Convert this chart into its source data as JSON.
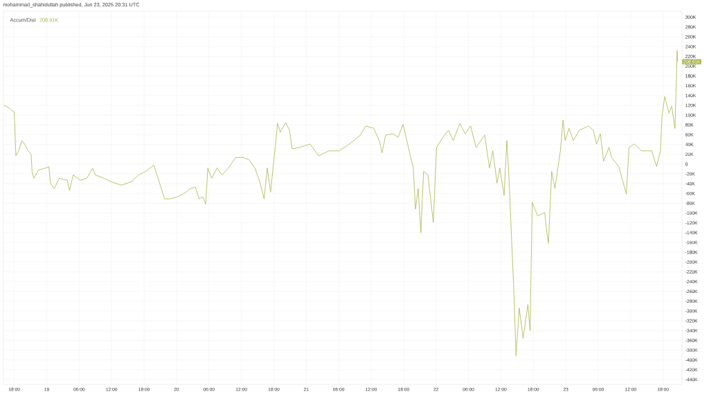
{
  "chart_data": {
    "type": "line",
    "annotations": [
      "mohammad_shahidullah published, Jun 23, 2025 20:31 UTC",
      "208.91K"
    ],
    "x": [
      "2025-06-18T16:06",
      "2025-06-18T17:00",
      "2025-06-18T17:30",
      "2025-06-18T18:00",
      "2025-06-18T18:18",
      "2025-06-18T18:48",
      "2025-06-18T19:24",
      "2025-06-18T19:54",
      "2025-06-18T20:36",
      "2025-06-18T21:06",
      "2025-06-18T21:18",
      "2025-06-18T21:36",
      "2025-06-18T22:30",
      "2025-06-18T23:48",
      "2025-06-19T00:24",
      "2025-06-19T00:42",
      "2025-06-19T01:24",
      "2025-06-19T02:18",
      "2025-06-19T03:48",
      "2025-06-19T04:12",
      "2025-06-19T04:54",
      "2025-06-19T06:12",
      "2025-06-19T07:24",
      "2025-06-19T08:30",
      "2025-06-19T09:00",
      "2025-06-19T10:36",
      "2025-06-19T11:54",
      "2025-06-19T13:48",
      "2025-06-19T15:42",
      "2025-06-19T17:00",
      "2025-06-19T18:18",
      "2025-06-19T19:48",
      "2025-06-19T20:36",
      "2025-06-19T21:48",
      "2025-06-19T22:48",
      "2025-06-20T00:06",
      "2025-06-20T01:18",
      "2025-06-20T02:36",
      "2025-06-20T03:30",
      "2025-06-20T04:12",
      "2025-06-20T04:54",
      "2025-06-20T05:24",
      "2025-06-20T05:48",
      "2025-06-20T06:30",
      "2025-06-20T07:30",
      "2025-06-20T08:24",
      "2025-06-20T09:36",
      "2025-06-20T10:54",
      "2025-06-20T12:12",
      "2025-06-20T13:24",
      "2025-06-20T14:30",
      "2025-06-20T15:24",
      "2025-06-20T16:12",
      "2025-06-20T16:48",
      "2025-06-20T17:24",
      "2025-06-20T18:06",
      "2025-06-20T18:42",
      "2025-06-20T19:12",
      "2025-06-20T20:12",
      "2025-06-20T20:54",
      "2025-06-20T21:24",
      "2025-06-20T22:42",
      "2025-06-21T00:42",
      "2025-06-21T02:18",
      "2025-06-21T04:12",
      "2025-06-21T06:06",
      "2025-06-21T08:00",
      "2025-06-21T10:00",
      "2025-06-21T11:00",
      "2025-06-21T12:30",
      "2025-06-21T13:36",
      "2025-06-21T14:00",
      "2025-06-21T14:42",
      "2025-06-21T16:00",
      "2025-06-21T17:00",
      "2025-06-21T17:54",
      "2025-06-21T18:54",
      "2025-06-21T19:48",
      "2025-06-21T20:12",
      "2025-06-21T20:42",
      "2025-06-21T21:12",
      "2025-06-21T21:42",
      "2025-06-21T22:30",
      "2025-06-21T23:30",
      "2025-06-22T00:06",
      "2025-06-22T01:18",
      "2025-06-22T02:18",
      "2025-06-22T03:12",
      "2025-06-22T04:24",
      "2025-06-22T05:24",
      "2025-06-22T06:24",
      "2025-06-22T07:24",
      "2025-06-22T09:00",
      "2025-06-22T09:54",
      "2025-06-22T10:30",
      "2025-06-22T11:18",
      "2025-06-22T11:48",
      "2025-06-22T12:36",
      "2025-06-22T13:06",
      "2025-06-22T13:30",
      "2025-06-22T13:54",
      "2025-06-22T14:24",
      "2025-06-22T14:48",
      "2025-06-22T15:24",
      "2025-06-22T16:06",
      "2025-06-22T17:00",
      "2025-06-22T17:24",
      "2025-06-22T17:48",
      "2025-06-22T18:48",
      "2025-06-22T20:06",
      "2025-06-22T20:30",
      "2025-06-22T20:48",
      "2025-06-22T21:24",
      "2025-06-22T22:00",
      "2025-06-22T23:00",
      "2025-06-22T23:30",
      "2025-06-22T23:54",
      "2025-06-23T00:36",
      "2025-06-23T01:24",
      "2025-06-23T02:30",
      "2025-06-23T04:12",
      "2025-06-23T05:06",
      "2025-06-23T05:42",
      "2025-06-23T06:24",
      "2025-06-23T07:00",
      "2025-06-23T08:00",
      "2025-06-23T08:30",
      "2025-06-23T09:48",
      "2025-06-23T11:12",
      "2025-06-23T11:42",
      "2025-06-23T12:42",
      "2025-06-23T14:00",
      "2025-06-23T15:54",
      "2025-06-23T16:48",
      "2025-06-23T17:30",
      "2025-06-23T17:48",
      "2025-06-23T18:18",
      "2025-06-23T19:06",
      "2025-06-23T19:36",
      "2025-06-23T20:12",
      "2025-06-23T20:36",
      "2025-06-23T20:42"
    ],
    "series": [
      {
        "name": "Accum/Dist",
        "color": "#a9b449",
        "values": [
          120,
          115,
          110,
          106,
          17,
          27,
          48,
          41,
          27,
          20,
          -15,
          -29,
          -12,
          -8,
          -5,
          -39,
          -50,
          -29,
          -33,
          -54,
          -22,
          -33,
          -29,
          -9,
          -22,
          -29,
          -36,
          -43,
          -36,
          -22,
          -15,
          -2,
          -29,
          -71,
          -71,
          -67,
          -61,
          -50,
          -47,
          -71,
          -67,
          -82,
          -8,
          -29,
          -8,
          -22,
          -8,
          13,
          14,
          9,
          -8,
          -36,
          -71,
          -8,
          -57,
          17,
          83,
          65,
          85,
          69,
          31,
          34,
          41,
          17,
          27,
          27,
          41,
          59,
          78,
          73,
          45,
          23,
          59,
          62,
          55,
          81,
          34,
          -8,
          -92,
          -50,
          -140,
          -15,
          -22,
          -119,
          34,
          55,
          69,
          48,
          83,
          62,
          78,
          34,
          59,
          -8,
          27,
          -39,
          -8,
          -64,
          48,
          -29,
          -133,
          -259,
          -391,
          -294,
          -356,
          -287,
          -340,
          -78,
          -106,
          -99,
          -140,
          -161,
          -15,
          -50,
          27,
          90,
          48,
          73,
          48,
          69,
          78,
          69,
          41,
          62,
          6,
          34,
          13,
          -5,
          -61,
          34,
          41,
          27,
          27,
          -5,
          27,
          97,
          138,
          104,
          118,
          73,
          232,
          209
        ]
      }
    ],
    "xlim": [
      "2025-06-18T16:00",
      "2025-06-23T21:30"
    ],
    "xticks": [
      {
        "value": "2025-06-18T18:00",
        "label": "18:00"
      },
      {
        "value": "2025-06-19",
        "label": "19"
      },
      {
        "value": "2025-06-19T06:00",
        "label": "06:00"
      },
      {
        "value": "2025-06-19T12:00",
        "label": "12:00"
      },
      {
        "value": "2025-06-19T18:00",
        "label": "18:00"
      },
      {
        "value": "2025-06-20",
        "label": "20"
      },
      {
        "value": "2025-06-20T06:00",
        "label": "06:00"
      },
      {
        "value": "2025-06-20T12:00",
        "label": "12:00"
      },
      {
        "value": "2025-06-20T18:00",
        "label": "18:00"
      },
      {
        "value": "2025-06-21",
        "label": "21"
      },
      {
        "value": "2025-06-21T06:00",
        "label": "06:00"
      },
      {
        "value": "2025-06-21T12:00",
        "label": "12:00"
      },
      {
        "value": "2025-06-21T18:00",
        "label": "18:00"
      },
      {
        "value": "2025-06-22",
        "label": "22"
      },
      {
        "value": "2025-06-22T06:00",
        "label": "06:00"
      },
      {
        "value": "2025-06-22T12:00",
        "label": "12:00"
      },
      {
        "value": "2025-06-22T18:00",
        "label": "18:00"
      },
      {
        "value": "2025-06-23",
        "label": "23"
      },
      {
        "value": "2025-06-23T06:00",
        "label": "06:00"
      },
      {
        "value": "2025-06-23T12:00",
        "label": "12:00"
      },
      {
        "value": "2025-06-23T18:00",
        "label": "18:00"
      }
    ],
    "ylim": [
      -450,
      312
    ],
    "yticks": [
      {
        "value": 300,
        "label": "300K"
      },
      {
        "value": 280,
        "label": "280K"
      },
      {
        "value": 260,
        "label": "260K"
      },
      {
        "value": 240,
        "label": "240K"
      },
      {
        "value": 220,
        "label": "220K"
      },
      {
        "value": 200,
        "label": "200K"
      },
      {
        "value": 180,
        "label": "180K"
      },
      {
        "value": 160,
        "label": "160K"
      },
      {
        "value": 140,
        "label": "140K"
      },
      {
        "value": 120,
        "label": "120K"
      },
      {
        "value": 100,
        "label": "100K"
      },
      {
        "value": 80,
        "label": "80K"
      },
      {
        "value": 60,
        "label": "60K"
      },
      {
        "value": 40,
        "label": "40K"
      },
      {
        "value": 20,
        "label": "20K"
      },
      0,
      {
        "value": -20,
        "label": "-20K"
      },
      {
        "value": -40,
        "label": "-40K"
      },
      {
        "value": -60,
        "label": "-60K"
      },
      {
        "value": -80,
        "label": "-80K"
      },
      {
        "value": -100,
        "label": "-100K"
      },
      {
        "value": -120,
        "label": "-120K"
      },
      {
        "value": -140,
        "label": "-140K"
      },
      {
        "value": -160,
        "label": "-160K"
      },
      {
        "value": -180,
        "label": "-180K"
      },
      {
        "value": -200,
        "label": "-200K"
      },
      {
        "value": -220,
        "label": "-220K"
      },
      {
        "value": -240,
        "label": "-240K"
      },
      {
        "value": -260,
        "label": "-260K"
      },
      {
        "value": -280,
        "label": "-280K"
      },
      {
        "value": -300,
        "label": "-300K"
      },
      {
        "value": -320,
        "label": "-320K"
      },
      {
        "value": -340,
        "label": "-340K"
      },
      {
        "value": -360,
        "label": "-360K"
      },
      {
        "value": -380,
        "label": "-380K"
      },
      {
        "value": -400,
        "label": "-400K"
      },
      {
        "value": -420,
        "label": "-420K"
      },
      {
        "value": -440,
        "label": "-440K"
      }
    ],
    "grid": true,
    "legend": "top left"
  }
}
